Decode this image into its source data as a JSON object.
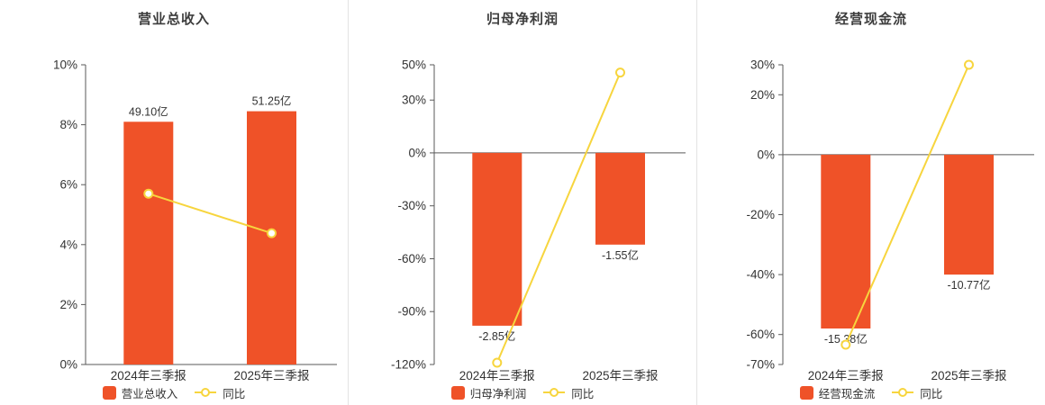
{
  "colors": {
    "bar": "#ef5228",
    "line": "#f7d53e",
    "axis": "#5a5a5a",
    "text": "#333333",
    "separator": "#e3e3e3",
    "marker_fill": "#ffffff"
  },
  "chart_data": [
    {
      "type": "bar",
      "title": "营业总收入",
      "categories": [
        "2024年三季报",
        "2025年三季报"
      ],
      "bar_series": {
        "name": "营业总收入",
        "labels": [
          "49.10亿",
          "51.25亿"
        ],
        "axis_values": [
          8.1,
          8.45
        ]
      },
      "line_series": {
        "name": "同比",
        "values": [
          5.7,
          4.38
        ]
      },
      "ylim": [
        0,
        10
      ],
      "yticks": [
        10,
        8,
        6,
        4,
        2,
        0
      ],
      "ytick_labels": [
        "10%",
        "8%",
        "6%",
        "4%",
        "2%",
        "0%"
      ],
      "legend": [
        "营业总收入",
        "同比"
      ],
      "legend_position": "bottom",
      "grid": false
    },
    {
      "type": "bar",
      "title": "归母净利润",
      "categories": [
        "2024年三季报",
        "2025年三季报"
      ],
      "bar_series": {
        "name": "归母净利润",
        "labels": [
          "-2.85亿",
          "-1.55亿"
        ],
        "axis_values": [
          -98,
          -52
        ]
      },
      "line_series": {
        "name": "同比",
        "values": [
          -119,
          45.6
        ]
      },
      "ylim": [
        -120,
        50
      ],
      "yticks": [
        50,
        30,
        0,
        -30,
        -60,
        -90,
        -120
      ],
      "ytick_labels": [
        "50%",
        "30%",
        "0%",
        "-30%",
        "-60%",
        "-90%",
        "-120%"
      ],
      "legend": [
        "归母净利润",
        "同比"
      ],
      "legend_position": "bottom",
      "grid": false
    },
    {
      "type": "bar",
      "title": "经营现金流",
      "categories": [
        "2024年三季报",
        "2025年三季报"
      ],
      "bar_series": {
        "name": "经营现金流",
        "labels": [
          "-15.38亿",
          "-10.77亿"
        ],
        "axis_values": [
          -58,
          -40
        ]
      },
      "line_series": {
        "name": "同比",
        "values": [
          -63.4,
          30
        ]
      },
      "ylim": [
        -70,
        30
      ],
      "yticks": [
        30,
        20,
        0,
        -20,
        -40,
        -60,
        -70
      ],
      "ytick_labels": [
        "30%",
        "20%",
        "0%",
        "-20%",
        "-40%",
        "-60%",
        "-70%"
      ],
      "legend": [
        "经营现金流",
        "同比"
      ],
      "legend_position": "bottom",
      "grid": false
    }
  ]
}
